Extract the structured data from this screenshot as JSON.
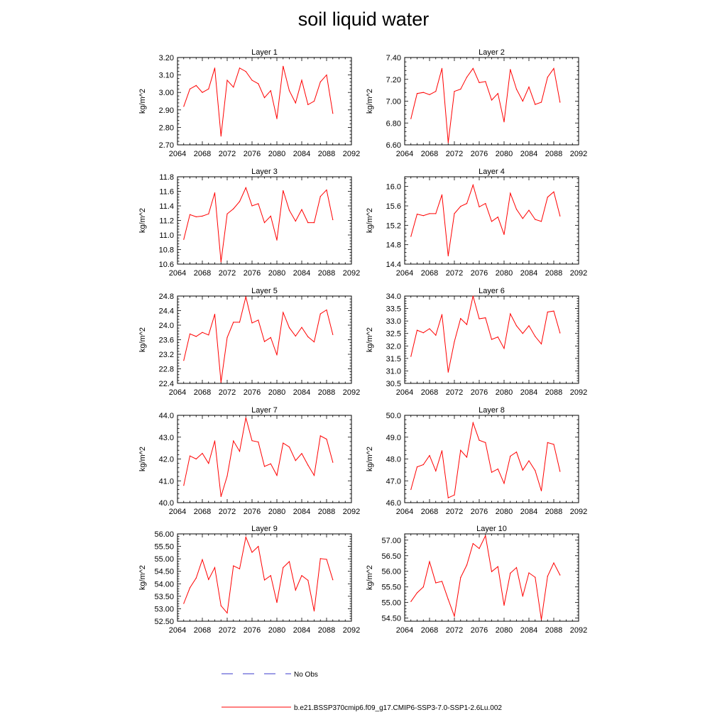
{
  "title": "soil liquid water",
  "legend": {
    "obs_label": "No Obs",
    "model_label": "b.e21.BSSP370cmip6.f09_g17.CMIP6-SSP3-7.0-SSP1-2.6Lu.002",
    "obs_color": "#3b3bcc",
    "model_color": "#ff0000"
  },
  "chart_data": [
    {
      "type": "line",
      "title": "Layer 1",
      "ylabel": "kg/m^2",
      "xlim": [
        2064,
        2092
      ],
      "xticks": [
        2064,
        2068,
        2072,
        2076,
        2080,
        2084,
        2088,
        2092
      ],
      "ylim": [
        2.7,
        3.2
      ],
      "yticks": [
        "2.70",
        "2.80",
        "2.90",
        "3.00",
        "3.10",
        "3.20"
      ],
      "x_start": 2065,
      "series": [
        {
          "color": "#ff0000",
          "values": [
            2.92,
            3.02,
            3.04,
            3.0,
            3.02,
            3.14,
            2.75,
            3.07,
            3.03,
            3.14,
            3.12,
            3.07,
            3.05,
            2.97,
            3.01,
            2.85,
            3.15,
            3.01,
            2.94,
            3.07,
            2.93,
            2.95,
            3.06,
            3.1,
            2.88
          ]
        }
      ]
    },
    {
      "type": "line",
      "title": "Layer 2",
      "ylabel": "kg/m^2",
      "xlim": [
        2064,
        2092
      ],
      "xticks": [
        2064,
        2068,
        2072,
        2076,
        2080,
        2084,
        2088,
        2092
      ],
      "ylim": [
        6.6,
        7.4
      ],
      "yticks": [
        "6.60",
        "6.80",
        "7.00",
        "7.20",
        "7.40"
      ],
      "x_start": 2065,
      "series": [
        {
          "color": "#ff0000",
          "values": [
            6.84,
            7.07,
            7.08,
            7.06,
            7.09,
            7.3,
            6.62,
            7.09,
            7.11,
            7.22,
            7.3,
            7.17,
            7.18,
            7.01,
            7.07,
            6.81,
            7.29,
            7.11,
            7.0,
            7.13,
            6.97,
            6.99,
            7.22,
            7.3,
            6.99
          ]
        }
      ]
    },
    {
      "type": "line",
      "title": "Layer 3",
      "ylabel": "kg/m^2",
      "xlim": [
        2064,
        2092
      ],
      "xticks": [
        2064,
        2068,
        2072,
        2076,
        2080,
        2084,
        2088,
        2092
      ],
      "ylim": [
        10.6,
        11.8
      ],
      "yticks": [
        "10.6",
        "10.8",
        "11.0",
        "11.2",
        "11.4",
        "11.6",
        "11.8"
      ],
      "x_start": 2065,
      "series": [
        {
          "color": "#ff0000",
          "values": [
            10.94,
            11.28,
            11.25,
            11.26,
            11.29,
            11.58,
            10.63,
            11.29,
            11.36,
            11.46,
            11.65,
            11.4,
            11.43,
            11.17,
            11.26,
            10.93,
            11.61,
            11.34,
            11.19,
            11.35,
            11.17,
            11.17,
            11.53,
            11.62,
            11.21
          ]
        }
      ]
    },
    {
      "type": "line",
      "title": "Layer 4",
      "ylabel": "kg/m^2",
      "xlim": [
        2064,
        2092
      ],
      "xticks": [
        2064,
        2068,
        2072,
        2076,
        2080,
        2084,
        2088,
        2092
      ],
      "ylim": [
        14.4,
        16.2
      ],
      "yticks": [
        "14.4",
        "14.8",
        "15.2",
        "15.6",
        "16.0"
      ],
      "x_start": 2065,
      "series": [
        {
          "color": "#ff0000",
          "values": [
            14.97,
            15.43,
            15.4,
            15.44,
            15.44,
            15.83,
            14.57,
            15.44,
            15.59,
            15.65,
            16.03,
            15.58,
            15.65,
            15.28,
            15.37,
            15.01,
            15.86,
            15.53,
            15.34,
            15.51,
            15.32,
            15.28,
            15.78,
            15.89,
            15.39
          ]
        }
      ]
    },
    {
      "type": "line",
      "title": "Layer 5",
      "ylabel": "kg/m^2",
      "xlim": [
        2064,
        2092
      ],
      "xticks": [
        2064,
        2068,
        2072,
        2076,
        2080,
        2084,
        2088,
        2092
      ],
      "ylim": [
        22.4,
        24.8
      ],
      "yticks": [
        "22.4",
        "22.8",
        "23.2",
        "23.6",
        "24.0",
        "24.4",
        "24.8"
      ],
      "x_start": 2065,
      "series": [
        {
          "color": "#ff0000",
          "values": [
            23.03,
            23.76,
            23.69,
            23.8,
            23.73,
            24.3,
            22.43,
            23.66,
            24.08,
            24.08,
            24.78,
            24.06,
            24.14,
            23.55,
            23.66,
            23.18,
            24.35,
            23.93,
            23.7,
            23.94,
            23.68,
            23.54,
            24.31,
            24.42,
            23.74
          ]
        }
      ]
    },
    {
      "type": "line",
      "title": "Layer 6",
      "ylabel": "kg/m^2",
      "xlim": [
        2064,
        2092
      ],
      "xticks": [
        2064,
        2068,
        2072,
        2076,
        2080,
        2084,
        2088,
        2092
      ],
      "ylim": [
        30.5,
        34.0
      ],
      "yticks": [
        "30.5",
        "31.0",
        "31.5",
        "32.0",
        "32.5",
        "33.0",
        "33.5",
        "34.0"
      ],
      "x_start": 2065,
      "series": [
        {
          "color": "#ff0000",
          "values": [
            31.58,
            32.63,
            32.53,
            32.69,
            32.43,
            33.26,
            30.95,
            32.17,
            33.1,
            32.86,
            34.0,
            33.09,
            33.13,
            32.26,
            32.36,
            31.9,
            33.29,
            32.81,
            32.5,
            32.81,
            32.38,
            32.08,
            33.36,
            33.4,
            32.52
          ]
        }
      ]
    },
    {
      "type": "line",
      "title": "Layer 7",
      "ylabel": "kg/m^2",
      "xlim": [
        2064,
        2092
      ],
      "xticks": [
        2064,
        2068,
        2072,
        2076,
        2080,
        2084,
        2088,
        2092
      ],
      "ylim": [
        40.0,
        44.0
      ],
      "yticks": [
        "40.0",
        "41.0",
        "42.0",
        "43.0",
        "44.0"
      ],
      "x_start": 2065,
      "series": [
        {
          "color": "#ff0000",
          "values": [
            40.79,
            42.14,
            42.0,
            42.26,
            41.8,
            42.83,
            40.28,
            41.22,
            42.83,
            42.35,
            43.89,
            42.84,
            42.78,
            41.66,
            41.78,
            41.25,
            42.73,
            42.55,
            41.93,
            42.25,
            41.72,
            41.25,
            43.06,
            42.91,
            41.85
          ]
        }
      ]
    },
    {
      "type": "line",
      "title": "Layer 8",
      "ylabel": "kg/m^2",
      "xlim": [
        2064,
        2092
      ],
      "xticks": [
        2064,
        2068,
        2072,
        2076,
        2080,
        2084,
        2088,
        2092
      ],
      "ylim": [
        46.0,
        50.0
      ],
      "yticks": [
        "46.0",
        "47.0",
        "48.0",
        "49.0",
        "50.0"
      ],
      "x_start": 2065,
      "series": [
        {
          "color": "#ff0000",
          "values": [
            46.6,
            47.64,
            47.74,
            48.16,
            47.45,
            48.38,
            46.22,
            46.35,
            48.4,
            48.08,
            49.66,
            48.86,
            48.75,
            47.39,
            47.54,
            46.88,
            48.13,
            48.32,
            47.49,
            47.92,
            47.47,
            46.54,
            48.75,
            48.67,
            47.43
          ]
        }
      ]
    },
    {
      "type": "line",
      "title": "Layer 9",
      "ylabel": "kg/m^2",
      "xlim": [
        2064,
        2092
      ],
      "xticks": [
        2064,
        2068,
        2072,
        2076,
        2080,
        2084,
        2088,
        2092
      ],
      "ylim": [
        52.5,
        56.0
      ],
      "yticks": [
        "52.50",
        "53.00",
        "53.50",
        "54.00",
        "54.50",
        "55.00",
        "55.50",
        "56.00"
      ],
      "x_start": 2065,
      "series": [
        {
          "color": "#ff0000",
          "values": [
            53.21,
            53.84,
            54.23,
            54.97,
            54.17,
            54.65,
            53.12,
            52.83,
            54.72,
            54.6,
            55.87,
            55.26,
            55.5,
            54.15,
            54.33,
            53.25,
            54.65,
            54.89,
            53.75,
            54.33,
            54.14,
            52.91,
            55.01,
            54.98,
            54.16
          ]
        }
      ]
    },
    {
      "type": "line",
      "title": "Layer 10",
      "ylabel": "kg/m^2",
      "xlim": [
        2064,
        2092
      ],
      "xticks": [
        2064,
        2068,
        2072,
        2076,
        2080,
        2084,
        2088,
        2092
      ],
      "ylim": [
        54.4,
        57.2
      ],
      "yticks": [
        "54.50",
        "55.00",
        "55.50",
        "56.00",
        "56.50",
        "57.00"
      ],
      "x_start": 2065,
      "series": [
        {
          "color": "#ff0000",
          "values": [
            55.03,
            55.31,
            55.5,
            56.31,
            55.63,
            55.68,
            55.1,
            54.56,
            55.8,
            56.2,
            56.89,
            56.73,
            57.14,
            55.99,
            56.15,
            54.91,
            55.94,
            56.12,
            55.2,
            55.95,
            55.81,
            54.45,
            55.84,
            56.27,
            55.88
          ]
        }
      ]
    }
  ]
}
